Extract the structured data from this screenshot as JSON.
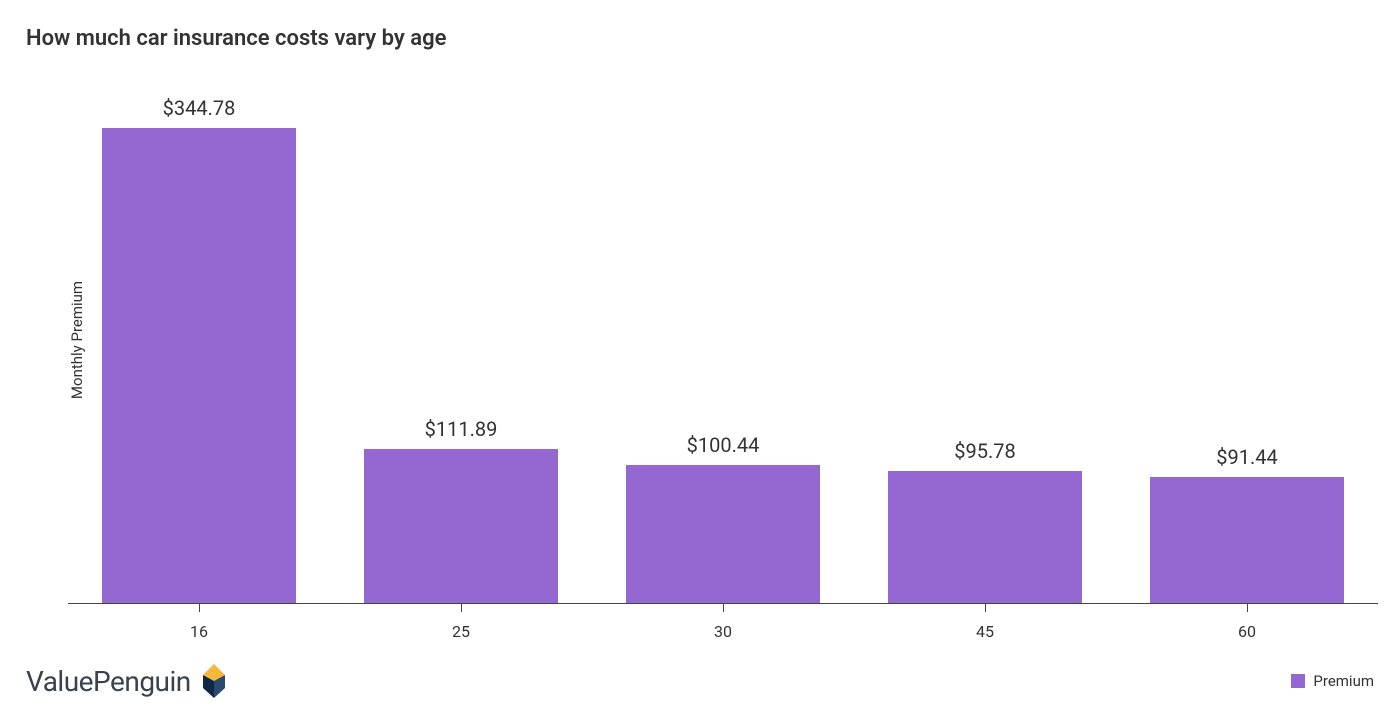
{
  "chart": {
    "type": "bar",
    "title": "How much car insurance costs vary by age",
    "title_fontsize": 22,
    "title_fontweight": 600,
    "title_color": "#333333",
    "ylabel": "Monthly Premium",
    "ylabel_fontsize": 15,
    "categories": [
      "16",
      "25",
      "30",
      "45",
      "60"
    ],
    "values": [
      344.78,
      111.89,
      100.44,
      95.78,
      91.44
    ],
    "value_labels": [
      "$344.78",
      "$111.89",
      "$100.44",
      "$95.78",
      "$91.44"
    ],
    "value_label_fontsize": 20,
    "bar_color": "#9467d1",
    "bar_width_ratio": 0.74,
    "ymax": 360,
    "background_color": "#ffffff",
    "axis_color": "#444444",
    "tick_fontsize": 16,
    "tick_color": "#333333"
  },
  "legend": {
    "label": "Premium",
    "swatch_color": "#9467d1"
  },
  "brand": {
    "name": "ValuePenguin",
    "text_color": "#3a424d",
    "logo_colors": {
      "top": "#f5b83b",
      "left": "#0f2846",
      "right": "#2c4a6b"
    }
  }
}
